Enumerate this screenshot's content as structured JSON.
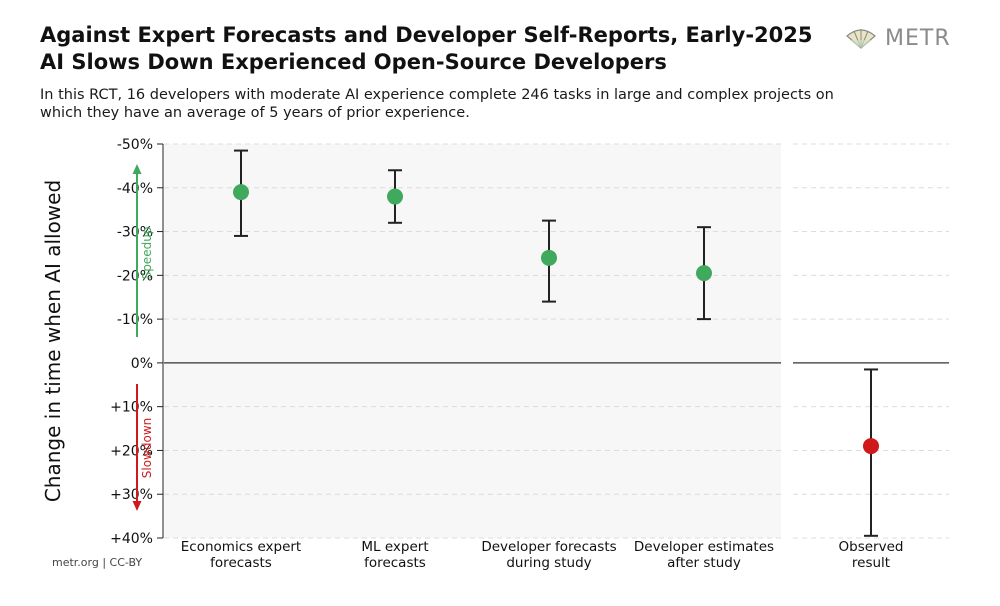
{
  "header": {
    "title_line1": "Against Expert Forecasts and Developer Self-Reports, Early-2025",
    "title_line2": "AI Slows Down Experienced Open-Source Developers",
    "subtitle": "In this RCT, 16 developers with moderate AI experience complete 246 tasks in large and complex projects on which they have an average of 5 years of prior experience."
  },
  "logo": {
    "text": "METR",
    "icon": "metr-fan-icon"
  },
  "footer": {
    "text": "metr.org  |  CC-BY"
  },
  "colors": {
    "speedup": "#3fa95d",
    "slowdown": "#d0191b",
    "marker_green": "#3fa95d",
    "marker_red": "#d0191b"
  },
  "chart_data": {
    "type": "scatter",
    "title": "Against Expert Forecasts and Developer Self-Reports, Early-2025 AI Slows Down Experienced Open-Source Developers",
    "ylabel": "Change in time when AI allowed",
    "ylim": [
      -50,
      40
    ],
    "yticks": [
      -50,
      -40,
      -30,
      -20,
      -10,
      0,
      10,
      20,
      30,
      40
    ],
    "ytick_labels": [
      "-50%",
      "-40%",
      "-30%",
      "-20%",
      "-10%",
      "0%",
      "+10%",
      "+20%",
      "+30%",
      "+40%"
    ],
    "grid": true,
    "annotations": {
      "speedup": "Speedup",
      "slowdown": "Slowdown"
    },
    "points": [
      {
        "label_line1": "Economics expert",
        "label_line2": "forecasts",
        "value": -39,
        "low": -48.5,
        "high": -29,
        "color": "green",
        "panel": "forecasts"
      },
      {
        "label_line1": "ML expert",
        "label_line2": "forecasts",
        "value": -38,
        "low": -44,
        "high": -32,
        "color": "green",
        "panel": "forecasts"
      },
      {
        "label_line1": "Developer forecasts",
        "label_line2": "during study",
        "value": -24,
        "low": -32.5,
        "high": -14,
        "color": "green",
        "panel": "forecasts"
      },
      {
        "label_line1": "Developer estimates",
        "label_line2": "after study",
        "value": -20.5,
        "low": -31,
        "high": -10,
        "color": "green",
        "panel": "forecasts"
      },
      {
        "label_line1": "Observed",
        "label_line2": "result",
        "value": 19,
        "low": 1.5,
        "high": 39.5,
        "color": "red",
        "panel": "observed"
      }
    ]
  }
}
